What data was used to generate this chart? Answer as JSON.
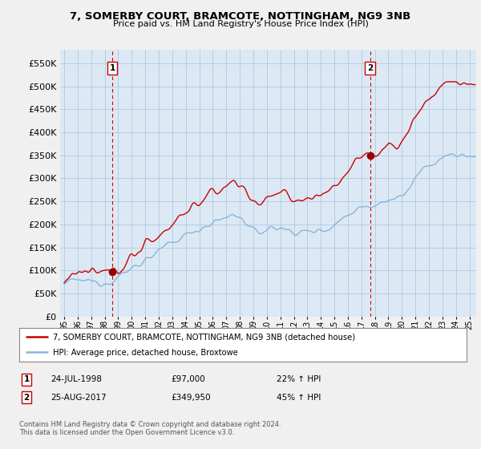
{
  "title": "7, SOMERBY COURT, BRAMCOTE, NOTTINGHAM, NG9 3NB",
  "subtitle": "Price paid vs. HM Land Registry's House Price Index (HPI)",
  "legend_line1": "7, SOMERBY COURT, BRAMCOTE, NOTTINGHAM, NG9 3NB (detached house)",
  "legend_line2": "HPI: Average price, detached house, Broxtowe",
  "annotation1_label": "1",
  "annotation1_date": "24-JUL-1998",
  "annotation1_price": "£97,000",
  "annotation1_hpi": "22% ↑ HPI",
  "annotation2_label": "2",
  "annotation2_date": "25-AUG-2017",
  "annotation2_price": "£349,950",
  "annotation2_hpi": "45% ↑ HPI",
  "footer": "Contains HM Land Registry data © Crown copyright and database right 2024.\nThis data is licensed under the Open Government Licence v3.0.",
  "sale1_x": 1998.56,
  "sale1_y": 97000,
  "sale2_x": 2017.65,
  "sale2_y": 349950,
  "hpi_color": "#8ab4d8",
  "price_color": "#cc0000",
  "vline_color": "#cc0000",
  "dot_color": "#990000",
  "bg_color": "#f0f0f0",
  "plot_bg": "#dce9f5",
  "grid_color": "#b0c8e0",
  "ylim": [
    0,
    580000
  ],
  "ytick_step": 50000,
  "xlim_start": 1994.7,
  "xlim_end": 2025.5,
  "figsize": [
    6.0,
    5.6
  ],
  "dpi": 100
}
